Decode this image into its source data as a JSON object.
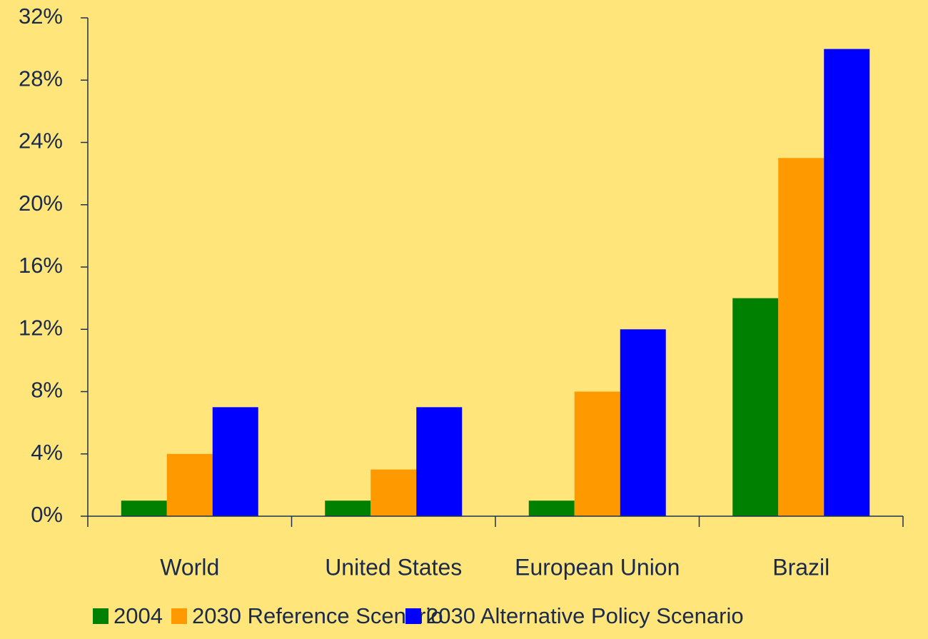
{
  "chart_data": {
    "type": "bar",
    "categories": [
      "World",
      "United States",
      "European Union",
      "Brazil"
    ],
    "series": [
      {
        "name": "2004",
        "color": "#008000",
        "values": [
          1,
          1,
          1,
          14
        ]
      },
      {
        "name": "2030 Reference Scenario",
        "color": "#FF9900",
        "values": [
          4,
          3,
          8,
          23
        ]
      },
      {
        "name": "2030 Alternative Policy Scenario",
        "color": "#0000FF",
        "values": [
          7,
          7,
          12,
          30
        ]
      }
    ],
    "ylim": [
      0,
      32
    ],
    "yticks": [
      {
        "value": 0,
        "label": "0%"
      },
      {
        "value": 4,
        "label": "4%"
      },
      {
        "value": 8,
        "label": "8%"
      },
      {
        "value": 12,
        "label": "12%"
      },
      {
        "value": 16,
        "label": "16%"
      },
      {
        "value": 20,
        "label": "20%"
      },
      {
        "value": 24,
        "label": "24%"
      },
      {
        "value": 28,
        "label": "28%"
      },
      {
        "value": 32,
        "label": "32%"
      }
    ],
    "grid": false,
    "legend": "bottom"
  }
}
